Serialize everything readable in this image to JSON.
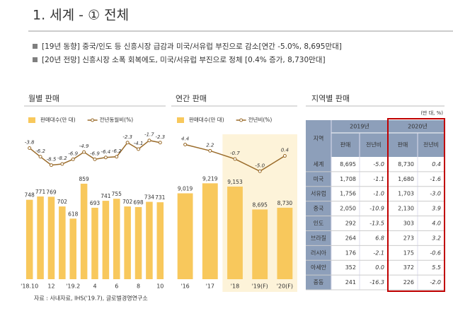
{
  "header": {
    "title": "1. 세계 - ① 전체"
  },
  "bullets": [
    "[19년 동향] 중국/인도 등 신흥시장 급감과 미국/서유럽 부진으로 감소[연간 -5.0%, 8,695만대]",
    "[20년 전망] 신흥시장 소폭 회복에도, 미국/서유럽 부진으로 정체 [0.4% 증가, 8,730만대]"
  ],
  "chart_data": [
    {
      "type": "bar",
      "title": "월별 판매",
      "categories": [
        "'18.10",
        null,
        "12",
        null,
        "'19.2",
        null,
        "4",
        null,
        "6",
        null,
        "8",
        null,
        "10"
      ],
      "series": [
        {
          "name": "판매대수(만 대)",
          "color": "#f8c85c",
          "values": [
            748,
            771,
            769,
            702,
            618,
            859,
            693,
            741,
            755,
            702,
            698,
            734,
            731
          ]
        },
        {
          "name": "전년동월비(%)",
          "type": "line",
          "axis": "y2",
          "color": "#9a6b2a",
          "values": [
            -3.8,
            -6.2,
            -8.5,
            -8.2,
            -6.9,
            -4.9,
            -6.9,
            -6.4,
            -6.2,
            -2.3,
            -4.1,
            -1.7,
            -2.3
          ]
        }
      ],
      "ylim": [
        200,
        1200
      ],
      "y2lim": [
        -40,
        0
      ]
    },
    {
      "type": "bar",
      "title": "연간 판매",
      "categories": [
        "'16",
        "'17",
        "'18",
        "'19(F)",
        "'20(F)"
      ],
      "series": [
        {
          "name": "판매대수(만 대)",
          "color": "#f8c85c",
          "values": [
            9019,
            9219,
            9153,
            8695,
            8730
          ],
          "value_labels": [
            "9,019",
            "9,219",
            "9,153",
            "8,695",
            "8,730"
          ]
        },
        {
          "name": "전년비(%)",
          "type": "line",
          "axis": "y2",
          "color": "#9a6b2a",
          "values": [
            4.4,
            2.2,
            -0.7,
            -5.0,
            0.4
          ],
          "value_labels": [
            "4.4",
            "2.2",
            "-0.7",
            "-5.0",
            "0.4"
          ]
        }
      ],
      "ylim": [
        7300,
        10200
      ],
      "y2lim": [
        -43,
        8
      ]
    }
  ],
  "table": {
    "title": "지역별 판매",
    "unit": "(만 대, %)",
    "header": {
      "region": "지역",
      "years": [
        "2019년",
        "2020년"
      ],
      "sub": [
        "판매",
        "전년비",
        "판매",
        "전년비"
      ]
    },
    "rows": [
      [
        "세계",
        "8,695",
        "-5.0",
        "8,730",
        "0.4"
      ],
      [
        "미국",
        "1,708",
        "-1.1",
        "1,680",
        "-1.6"
      ],
      [
        "서유럽",
        "1,756",
        "-1.0",
        "1,703",
        "-3.0"
      ],
      [
        "중국",
        "2,050",
        "-10.9",
        "2,130",
        "3.9"
      ],
      [
        "인도",
        "292",
        "-13.5",
        "303",
        "4.0"
      ],
      [
        "브라질",
        "264",
        "6.8",
        "273",
        "3.2"
      ],
      [
        "러시아",
        "176",
        "-2.1",
        "175",
        "-0.6"
      ],
      [
        "아세안",
        "352",
        "0.0",
        "372",
        "5.5"
      ],
      [
        "중동",
        "241",
        "-16.3",
        "226",
        "-2.0"
      ]
    ]
  },
  "source": "자료 : 사내자료, IHS('19.7), 글로벌경영연구소"
}
